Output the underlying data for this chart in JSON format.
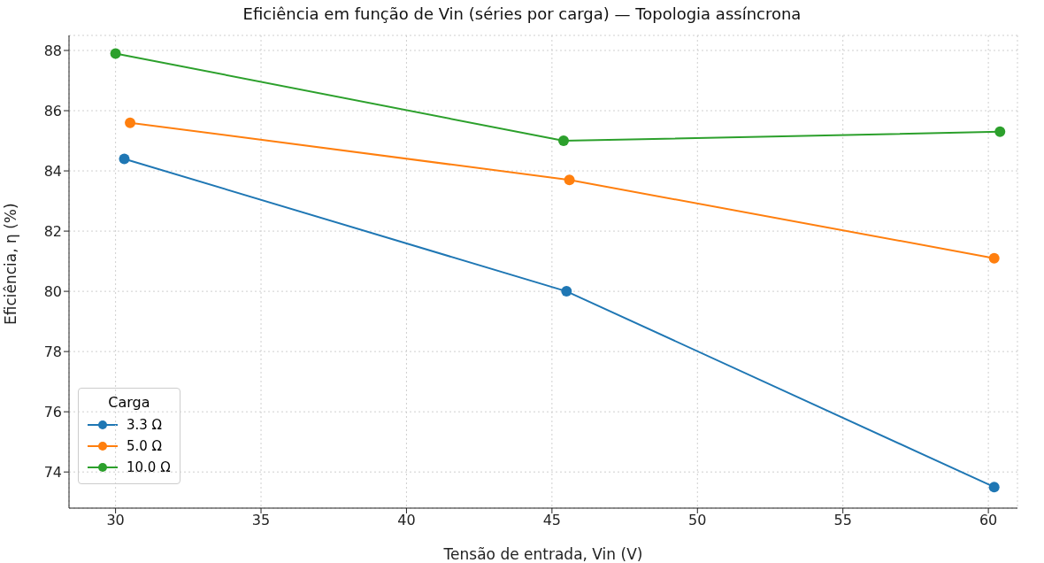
{
  "chart_data": {
    "type": "line",
    "title": "Eficiência em função de Vin (séries por carga) — Topologia assíncrona",
    "xlabel": "Tensão de entrada, Vin (V)",
    "ylabel": "Eficiência, η (%)",
    "legend_title": "Carga",
    "series": [
      {
        "name": "3.3 Ω",
        "color": "#1f77b4",
        "x": [
          30.3,
          45.5,
          60.2
        ],
        "values": [
          84.4,
          80.0,
          73.5
        ]
      },
      {
        "name": "5.0 Ω",
        "color": "#ff7f0e",
        "x": [
          30.5,
          45.6,
          60.2
        ],
        "values": [
          85.6,
          83.7,
          81.1
        ]
      },
      {
        "name": "10.0 Ω",
        "color": "#2ca02c",
        "x": [
          30.0,
          45.4,
          60.4
        ],
        "values": [
          87.9,
          85.0,
          85.3
        ]
      }
    ],
    "xlim": [
      28.4,
      61.0
    ],
    "xticks": [
      30,
      35,
      40,
      45,
      50,
      55,
      60
    ],
    "ylim": [
      72.8,
      88.5
    ],
    "yticks": [
      74,
      76,
      78,
      80,
      82,
      84,
      86,
      88
    ],
    "grid": true,
    "legend": "bottom left",
    "marker": "circle",
    "line_style": "solid"
  }
}
